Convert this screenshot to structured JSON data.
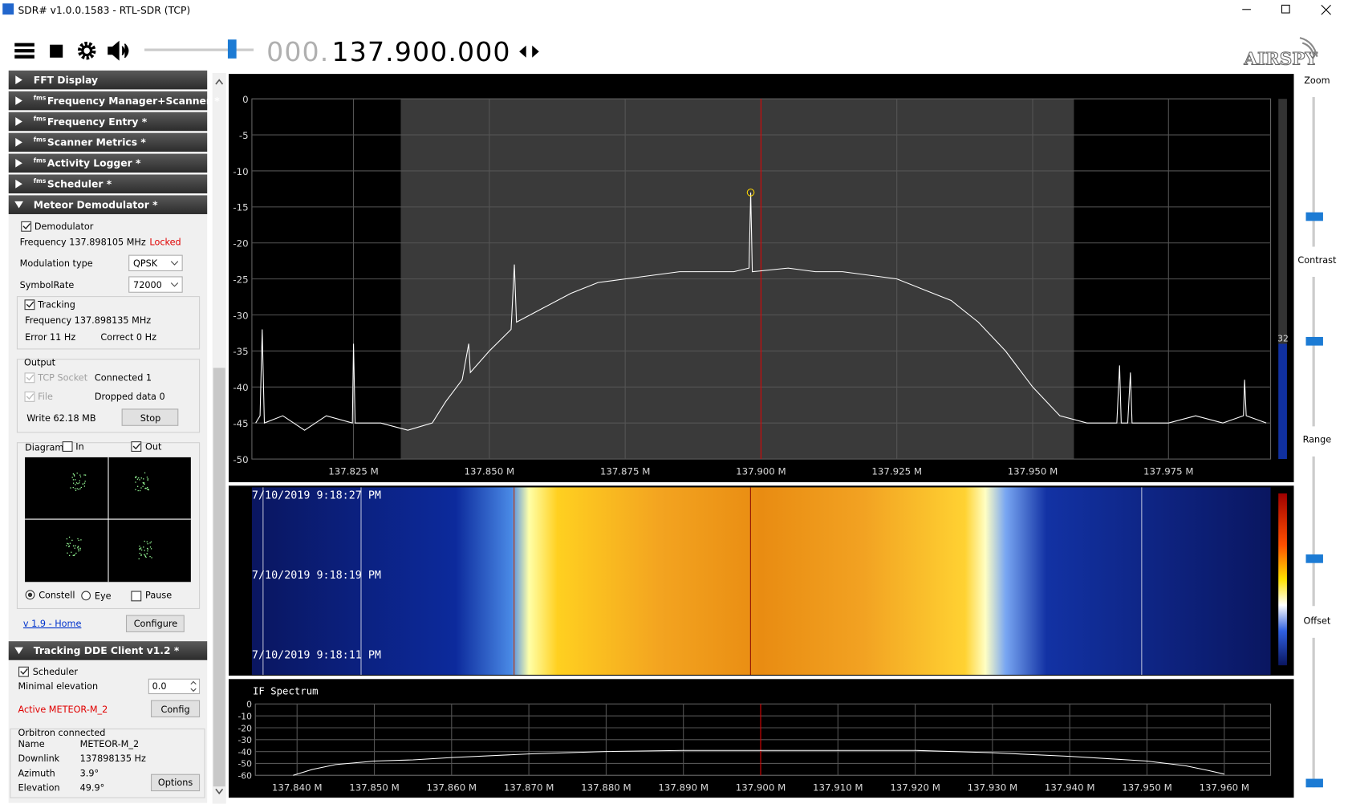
{
  "window": {
    "title": "SDR# v1.0.0.1583 - RTL-SDR (TCP)"
  },
  "toolbar": {
    "frequency_dim": "000.",
    "frequency": "137.900.000",
    "logo": "AIRSPY"
  },
  "panels": [
    {
      "label": "FFT Display",
      "expanded": false
    },
    {
      "prefix": "fms",
      "label": "Frequency Manager+Scanner *",
      "expanded": false
    },
    {
      "prefix": "fms",
      "label": "Frequency Entry *",
      "expanded": false
    },
    {
      "prefix": "fms",
      "label": "Scanner Metrics *",
      "expanded": false
    },
    {
      "prefix": "fms",
      "label": "Activity Logger *",
      "expanded": false
    },
    {
      "prefix": "fms",
      "label": "Scheduler *",
      "expanded": false
    },
    {
      "label": "Meteor Demodulator *",
      "expanded": true
    }
  ],
  "meteor": {
    "demod_label": "Demodulator",
    "frequency": "Frequency 137.898105 MHz",
    "status": "Locked",
    "modulation_label": "Modulation type",
    "modulation": "QPSK",
    "symbolrate_label": "SymbolRate",
    "symbolrate": "72000",
    "tracking_label": "Tracking",
    "tracking_frequency": "Frequency 137.898135 MHz",
    "error": "Error 11 Hz",
    "correct": "Correct 0 Hz",
    "output_label": "Output",
    "tcp_label": "TCP Socket",
    "tcp_status": "Connected 1",
    "file_label": "File",
    "dropped": "Dropped data 0",
    "write": "Write 62.18 MB",
    "stop": "Stop",
    "diagram_label": "Diagram",
    "in_label": "In",
    "out_label": "Out",
    "constell": "Constell",
    "eye": "Eye",
    "pause": "Pause",
    "home": "v 1.9 - Home",
    "configure": "Configure"
  },
  "tracking": {
    "header": "Tracking DDE Client v1.2 *",
    "scheduler": "Scheduler",
    "min_elev_label": "Minimal elevation",
    "min_elev": "0.0",
    "active": "Active METEOR-M_2",
    "config": "Config",
    "orbitron": "Orbitron connected",
    "rows": [
      [
        "Name",
        "METEOR-M_2"
      ],
      [
        "Downlink",
        "137898135 Hz"
      ],
      [
        "Azimuth",
        "3.9°"
      ],
      [
        "Elevation",
        "49.9°"
      ]
    ],
    "options": "Options"
  },
  "sliders": [
    "Zoom",
    "Contrast",
    "Range",
    "Offset"
  ],
  "gauge": "32",
  "spectrum": {
    "type": "line",
    "xlim": [
      137.8063,
      137.9938
    ],
    "ylim": [
      -50,
      0
    ],
    "yticks": [
      0,
      -5,
      -10,
      -15,
      -20,
      -25,
      -30,
      -35,
      -40,
      -45,
      -50
    ],
    "xticks": [
      {
        "value": 137.825,
        "label": "137.825 M"
      },
      {
        "value": 137.85,
        "label": "137.850 M"
      },
      {
        "value": 137.875,
        "label": "137.875 M"
      },
      {
        "value": 137.9,
        "label": "137.900 M"
      },
      {
        "value": 137.925,
        "label": "137.925 M"
      },
      {
        "value": 137.95,
        "label": "137.950 M"
      },
      {
        "value": 137.975,
        "label": "137.975 M"
      }
    ],
    "passband": [
      137.8337,
      137.9576
    ],
    "center": 137.9,
    "peak": [
      137.8981,
      -13
    ],
    "color": "#ffffff",
    "x": [
      137.807,
      137.8078,
      137.8082,
      137.8086,
      137.812,
      137.816,
      137.82,
      137.8248,
      137.825,
      137.8253,
      137.83,
      137.835,
      137.8395,
      137.842,
      137.845,
      137.8462,
      137.8465,
      137.85,
      137.854,
      137.8546,
      137.855,
      137.86,
      137.865,
      137.87,
      137.875,
      137.88,
      137.885,
      137.89,
      137.895,
      137.8978,
      137.8981,
      137.8984,
      137.905,
      137.91,
      137.915,
      137.92,
      137.925,
      137.93,
      137.935,
      137.94,
      137.945,
      137.95,
      137.955,
      137.96,
      137.9655,
      137.966,
      137.9663,
      137.9675,
      137.968,
      137.9683,
      137.975,
      137.98,
      137.985,
      137.9888,
      137.989,
      137.9893,
      137.993
    ],
    "values": [
      -45,
      -44,
      -32,
      -45,
      -44,
      -46,
      -44,
      -45,
      -34,
      -45,
      -45,
      -46,
      -45,
      -42,
      -39,
      -34,
      -38,
      -35,
      -32,
      -23,
      -31,
      -29,
      -27,
      -25.5,
      -25,
      -24.5,
      -24,
      -24,
      -24,
      -23.5,
      -13,
      -24,
      -23.5,
      -24,
      -24,
      -24.5,
      -25,
      -26.5,
      -28,
      -31,
      -35,
      -40,
      -44,
      -45,
      -45,
      -37,
      -45,
      -45,
      -38,
      -45,
      -45,
      -44,
      -45,
      -44,
      -39,
      -44,
      -45
    ]
  },
  "waterfall": {
    "timestamps": [
      "7/10/2019 9:18:27 PM",
      "7/10/2019 9:18:19 PM",
      "7/10/2019 9:18:11 PM"
    ]
  },
  "if_spectrum": {
    "type": "line",
    "title": "IF Spectrum",
    "xlim": [
      137.8346,
      137.966
    ],
    "ylim": [
      -60,
      0
    ],
    "yticks": [
      0,
      -10,
      -20,
      -30,
      -40,
      -50,
      -60
    ],
    "xticks": [
      {
        "value": 137.84,
        "label": "137.840 M"
      },
      {
        "value": 137.85,
        "label": "137.850 M"
      },
      {
        "value": 137.86,
        "label": "137.860 M"
      },
      {
        "value": 137.87,
        "label": "137.870 M"
      },
      {
        "value": 137.88,
        "label": "137.880 M"
      },
      {
        "value": 137.89,
        "label": "137.890 M"
      },
      {
        "value": 137.9,
        "label": "137.900 M"
      },
      {
        "value": 137.91,
        "label": "137.910 M"
      },
      {
        "value": 137.92,
        "label": "137.920 M"
      },
      {
        "value": 137.93,
        "label": "137.930 M"
      },
      {
        "value": 137.94,
        "label": "137.940 M"
      },
      {
        "value": 137.95,
        "label": "137.950 M"
      },
      {
        "value": 137.96,
        "label": "137.960 M"
      }
    ],
    "center": 137.9,
    "color": "#ffffff",
    "x": [
      137.8395,
      137.842,
      137.845,
      137.85,
      137.855,
      137.86,
      137.87,
      137.88,
      137.89,
      137.9,
      137.91,
      137.92,
      137.93,
      137.94,
      137.95,
      137.955,
      137.958,
      137.96
    ],
    "values": [
      -60,
      -55,
      -51,
      -48,
      -47,
      -45,
      -42,
      -40,
      -39,
      -39,
      -39,
      -39,
      -41,
      -44,
      -48,
      -52,
      -56,
      -59
    ]
  }
}
